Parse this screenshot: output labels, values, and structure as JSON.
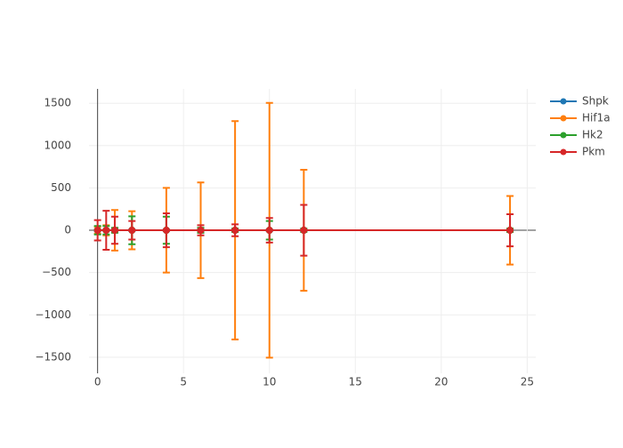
{
  "chart_data": {
    "type": "line",
    "x": [
      0,
      0.5,
      1,
      2,
      4,
      6,
      8,
      10,
      12,
      24
    ],
    "series": [
      {
        "name": "Shpk",
        "color": "#1f77b4",
        "values": [
          0,
          0,
          0,
          0,
          0,
          0,
          0,
          0,
          0,
          0
        ],
        "errors": [
          10,
          10,
          10,
          10,
          10,
          10,
          10,
          10,
          10,
          10
        ]
      },
      {
        "name": "Hif1a",
        "color": "#ff7f0e",
        "values": [
          0,
          0,
          0,
          0,
          0,
          0,
          0,
          0,
          0,
          0
        ],
        "errors": [
          40,
          60,
          240,
          225,
          500,
          565,
          1290,
          1505,
          715,
          405
        ]
      },
      {
        "name": "Hk2",
        "color": "#2ca02c",
        "values": [
          0,
          0,
          0,
          0,
          0,
          0,
          0,
          0,
          0,
          0
        ],
        "errors": [
          50,
          50,
          30,
          165,
          160,
          30,
          20,
          110,
          20,
          20
        ]
      },
      {
        "name": "Pkm",
        "color": "#d62728",
        "values": [
          0,
          0,
          0,
          0,
          0,
          0,
          0,
          0,
          0,
          0
        ],
        "errors": [
          120,
          230,
          160,
          110,
          200,
          60,
          70,
          145,
          300,
          190
        ]
      }
    ],
    "xlim": [
      -0.5,
      25.5
    ],
    "ylim": [
      -1690,
      1670
    ],
    "xticks": [
      0,
      5,
      10,
      15,
      20,
      25
    ],
    "yticks": [
      {
        "value": -1500,
        "label": "−1500"
      },
      {
        "value": -1000,
        "label": "−1000"
      },
      {
        "value": -500,
        "label": "−500"
      },
      0,
      500,
      1000,
      1500
    ],
    "grid": true,
    "legend": "top-right"
  }
}
